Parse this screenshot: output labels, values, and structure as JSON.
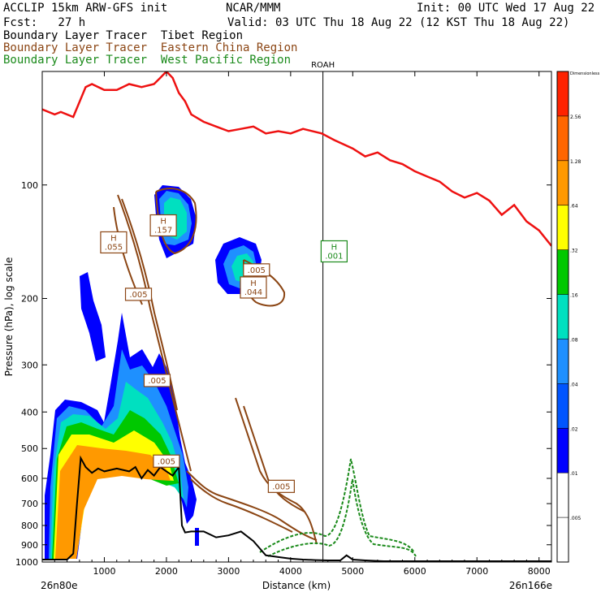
{
  "header": {
    "left_line1": "ACCLIP 15km ARW-GFS init",
    "center_line1": "NCAR/MMM",
    "right_line1": "Init: 00 UTC Wed 17 Aug 22",
    "left_line2": "Fcst:   27 h",
    "right_line2": "Valid: 03 UTC Thu 18 Aug 22 (12 KST Thu 18 Aug 22)",
    "tracer_tibet": "Boundary Layer Tracer  Tibet Region",
    "tracer_china": "Boundary Layer Tracer  Eastern China Region",
    "tracer_wpac": "Boundary Layer Tracer  West Pacific Region"
  },
  "chart_data": {
    "type": "cross-section",
    "xlabel": "Distance (km)",
    "ylabel": "Pressure (hPa), log scale",
    "xlim": [
      0,
      8200
    ],
    "ylim": [
      1000,
      50
    ],
    "x_ticks": [
      1000,
      2000,
      3000,
      4000,
      5000,
      6000,
      7000,
      8000
    ],
    "y_ticks": [
      100,
      200,
      300,
      400,
      500,
      600,
      700,
      800,
      900,
      1000
    ],
    "left_endpoint": "26n80e",
    "right_endpoint": "26n166e",
    "vertical_marker": {
      "label": "ROAH",
      "x": 4520
    },
    "colorbar": {
      "title": "Dimensionless",
      "levels": [
        "0.005",
        "0.01",
        "0.02",
        "0.04",
        "0.08",
        "0.16",
        "0.32",
        "0.64",
        "1.28",
        "2.56"
      ],
      "level_labels": [
        ".005",
        ".01",
        ".02",
        ".04",
        ".08",
        ".16",
        ".32",
        ".64",
        "1.28",
        "2.56"
      ],
      "colors": [
        "#ffffff",
        "#ffffff",
        "#0000ff",
        "#0055ff",
        "#1e90ff",
        "#00e0c0",
        "#00c800",
        "#ffff00",
        "#ff9900",
        "#ff6600",
        "#ff2200"
      ]
    },
    "annotations": [
      {
        "text": "H\n.055",
        "x": 1150,
        "p": 142
      },
      {
        "text": ".005",
        "x": 1550,
        "p": 195
      },
      {
        "text": "H\n.157",
        "x": 1950,
        "p": 128
      },
      {
        "text": ".005",
        "x": 3450,
        "p": 168
      },
      {
        "text": "H\n.044",
        "x": 3400,
        "p": 187
      },
      {
        "text": "H\n.001",
        "x": 4700,
        "p": 150
      },
      {
        "text": ".005",
        "x": 1850,
        "p": 330
      },
      {
        "text": ".005",
        "x": 2000,
        "p": 540
      },
      {
        "text": ".005",
        "x": 3850,
        "p": 630
      }
    ],
    "series": [
      {
        "kind": "tropopause-line",
        "x": [
          0,
          200,
          300,
          500,
          700,
          800,
          1000,
          1200,
          1400,
          1600,
          1800,
          1900,
          2000,
          2100,
          2200,
          2300,
          2400,
          2600,
          2800,
          3000,
          3200,
          3400,
          3600,
          3800,
          4000,
          4200,
          4500,
          4700,
          5000,
          5200,
          5400,
          5600,
          5800,
          6000,
          6200,
          6400,
          6600,
          6800,
          7000,
          7200,
          7400,
          7600,
          7800,
          8000,
          8200
        ],
        "p": [
          63,
          65,
          64,
          66,
          55,
          54,
          56,
          56,
          54,
          55,
          54,
          52,
          50,
          52,
          57,
          60,
          65,
          68,
          70,
          72,
          71,
          70,
          73,
          72,
          73,
          71,
          73,
          76,
          80,
          84,
          82,
          86,
          88,
          92,
          95,
          98,
          104,
          108,
          105,
          110,
          120,
          113,
          125,
          132,
          145
        ]
      },
      {
        "kind": "terrain",
        "x": [
          0,
          200,
          400,
          500,
          560,
          620,
          700,
          800,
          900,
          1000,
          1200,
          1400,
          1500,
          1600,
          1700,
          1800,
          1900,
          2000,
          2100,
          2200,
          2250,
          2300,
          2400,
          2600,
          2800,
          3000,
          3200,
          3400,
          3600,
          3800,
          4000,
          4200,
          4400,
          4600,
          4800,
          4900,
          5000,
          5200,
          5500,
          6000,
          7000,
          8200
        ],
        "p": [
          985,
          985,
          985,
          950,
          700,
          530,
          560,
          580,
          565,
          575,
          565,
          575,
          560,
          600,
          570,
          590,
          560,
          575,
          590,
          560,
          800,
          835,
          830,
          830,
          860,
          850,
          830,
          880,
          960,
          970,
          980,
          985,
          988,
          990,
          990,
          960,
          985,
          990,
          995,
          995,
          995,
          995
        ]
      }
    ]
  }
}
